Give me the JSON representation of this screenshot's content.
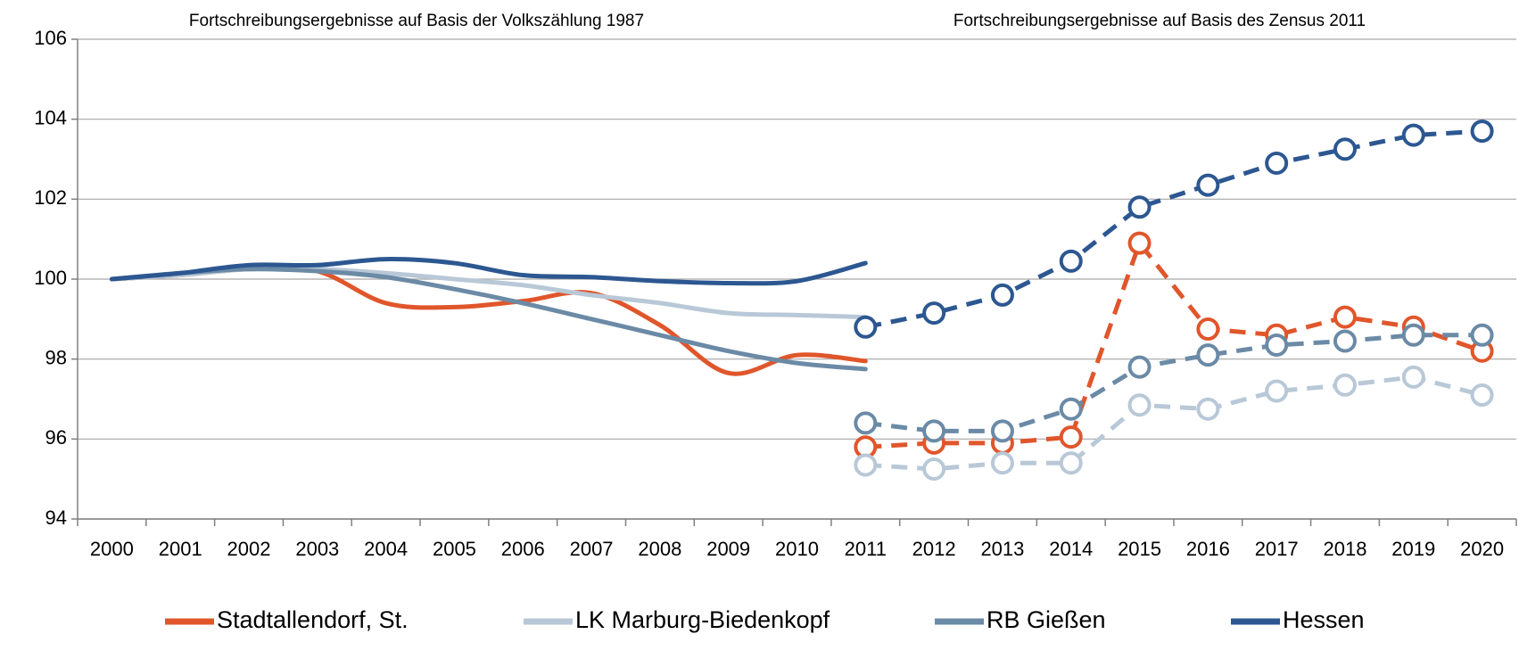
{
  "chart_data": {
    "type": "line",
    "annotations": [
      "Fortschreibungsergebnisse auf Basis der Volkszählung 1987",
      "Fortschreibungsergebnisse auf Basis des Zensus 2011"
    ],
    "categories": [
      "2000",
      "2001",
      "2002",
      "2003",
      "2004",
      "2005",
      "2006",
      "2007",
      "2008",
      "2009",
      "2010",
      "2011",
      "2012",
      "2013",
      "2014",
      "2015",
      "2016",
      "2017",
      "2018",
      "2019",
      "2020"
    ],
    "ylim": [
      94,
      106
    ],
    "yticks": [
      94,
      96,
      98,
      100,
      102,
      104,
      106
    ],
    "grid": true,
    "series": [
      {
        "name": "Stadtallendorf, St.",
        "color": "#e0562b",
        "values": [
          100,
          100.1,
          100.25,
          100.2,
          99.4,
          99.3,
          99.45,
          99.65,
          98.85,
          97.65,
          98.1,
          97.95,
          null,
          null,
          null,
          null,
          null,
          null,
          null,
          null,
          null
        ],
        "census_values": [
          null,
          null,
          null,
          null,
          null,
          null,
          null,
          null,
          null,
          null,
          null,
          95.8,
          95.9,
          95.9,
          96.05,
          100.9,
          98.75,
          98.6,
          99.05,
          98.8,
          98.2
        ]
      },
      {
        "name": "LK Marburg-Biedenkopf",
        "color": "#b8c8d7",
        "values": [
          100,
          100.1,
          100.25,
          100.25,
          100.15,
          100.0,
          99.85,
          99.6,
          99.4,
          99.15,
          99.1,
          99.05,
          null,
          null,
          null,
          null,
          null,
          null,
          null,
          null,
          null
        ],
        "census_values": [
          null,
          null,
          null,
          null,
          null,
          null,
          null,
          null,
          null,
          null,
          null,
          95.35,
          95.25,
          95.4,
          95.4,
          96.85,
          96.75,
          97.2,
          97.35,
          97.55,
          97.1
        ]
      },
      {
        "name": "RB Gießen",
        "color": "#6b8aa6",
        "values": [
          100,
          100.15,
          100.25,
          100.2,
          100.05,
          99.75,
          99.4,
          99.0,
          98.6,
          98.2,
          97.9,
          97.75,
          null,
          null,
          null,
          null,
          null,
          null,
          null,
          null,
          null
        ],
        "census_values": [
          null,
          null,
          null,
          null,
          null,
          null,
          null,
          null,
          null,
          null,
          null,
          96.4,
          96.2,
          96.2,
          96.75,
          97.8,
          98.1,
          98.35,
          98.45,
          98.6,
          98.6
        ]
      },
      {
        "name": "Hessen",
        "color": "#2c5791",
        "values": [
          100,
          100.15,
          100.35,
          100.35,
          100.5,
          100.4,
          100.1,
          100.05,
          99.95,
          99.9,
          99.95,
          100.4,
          null,
          null,
          null,
          null,
          null,
          null,
          null,
          null,
          null
        ],
        "census_values": [
          null,
          null,
          null,
          null,
          null,
          null,
          null,
          null,
          null,
          null,
          null,
          98.8,
          99.15,
          99.6,
          100.45,
          101.8,
          102.35,
          102.9,
          103.25,
          103.6,
          103.7
        ]
      }
    ]
  }
}
